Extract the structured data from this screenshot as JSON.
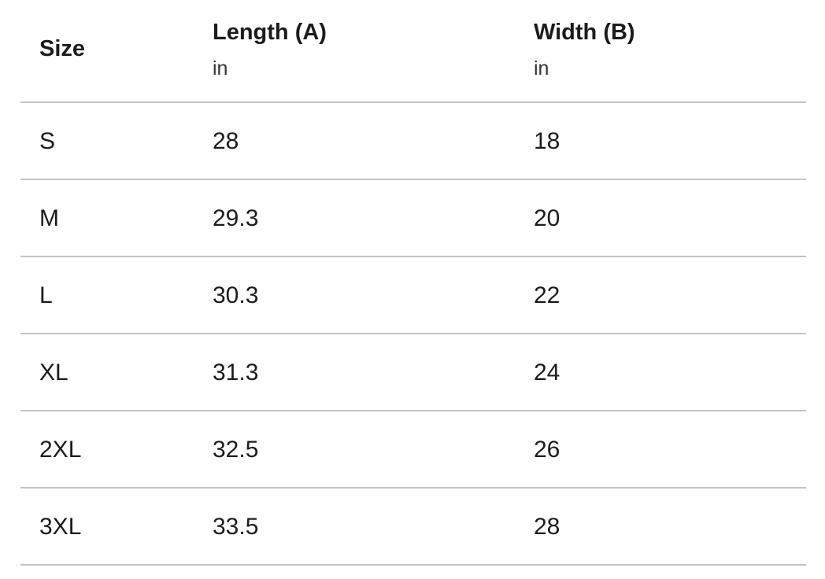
{
  "table": {
    "header": [
      {
        "title": "Size"
      },
      {
        "title": "Length (A)",
        "unit": "in"
      },
      {
        "title": "Width (B)",
        "unit": "in"
      }
    ],
    "rows": [
      [
        "S",
        "28",
        "18"
      ],
      [
        "M",
        "29.3",
        "20"
      ],
      [
        "L",
        "30.3",
        "22"
      ],
      [
        "XL",
        "31.3",
        "24"
      ],
      [
        "2XL",
        "32.5",
        "26"
      ],
      [
        "3XL",
        "33.5",
        "28"
      ]
    ]
  }
}
